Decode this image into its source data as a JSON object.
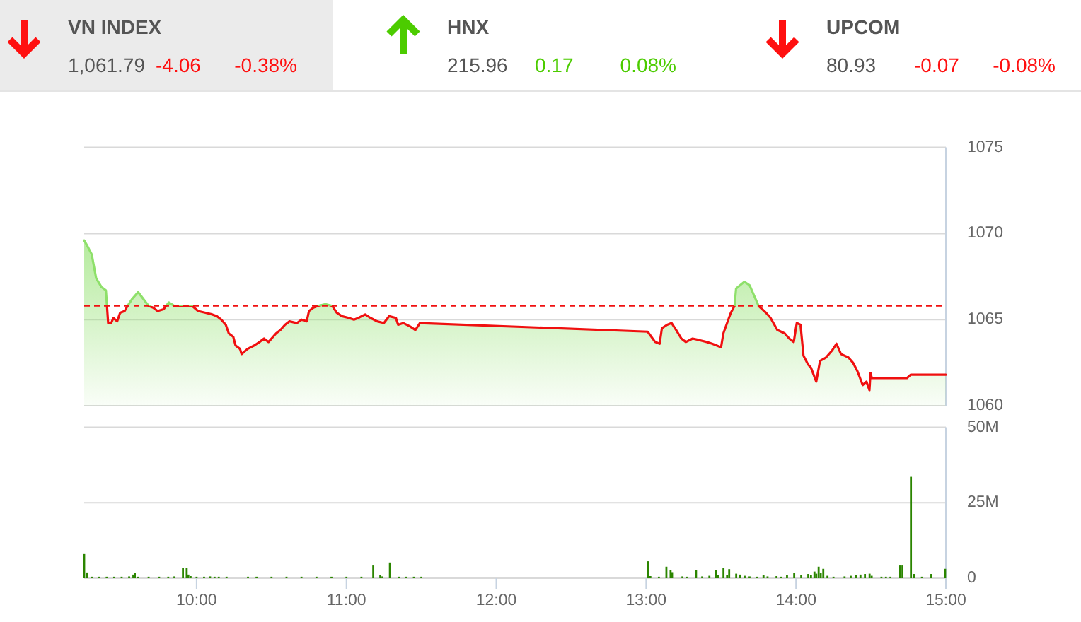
{
  "chart_data": [
    {
      "type": "other",
      "categories": [
        "VN INDEX",
        "HNX",
        "UPCOM"
      ],
      "colors": [
        "#ff1010",
        "#4ccc00",
        "#ff1010"
      ],
      "series": [
        {
          "values": [
            -4.06,
            0.17,
            -0.07
          ],
          "value_labels": [
            "-4.06",
            "0.17",
            "-0.07"
          ]
        }
      ],
      "annotations": [
        "1,061.79",
        "-0.38%",
        "215.96",
        "0.08%",
        "80.93",
        "-0.08%"
      ]
    },
    {
      "type": "area",
      "xlim": [
        9.25,
        15
      ],
      "ylim": [
        1060,
        1075
      ],
      "yticks": [
        1060,
        1065,
        1070,
        1075
      ],
      "tick_labels": "y",
      "grid": "y",
      "x": [
        9.25,
        9.27,
        9.3,
        9.33,
        9.365,
        9.395,
        9.41,
        9.43,
        9.445,
        9.47,
        9.49,
        9.52,
        9.54,
        9.57,
        9.61,
        9.645,
        9.68,
        9.71,
        9.74,
        9.78,
        9.815,
        9.85,
        9.915,
        9.97,
        10.01,
        10.06,
        10.105,
        10.135,
        10.165,
        10.195,
        10.215,
        10.245,
        10.26,
        10.29,
        10.3,
        10.34,
        10.385,
        10.42,
        10.45,
        10.48,
        10.53,
        10.56,
        10.59,
        10.62,
        10.67,
        10.7,
        10.735,
        10.75,
        10.78,
        10.81,
        10.86,
        10.905,
        10.935,
        10.97,
        11.015,
        11.05,
        11.08,
        11.125,
        11.16,
        11.205,
        11.25,
        11.285,
        11.33,
        11.345,
        11.38,
        11.425,
        11.46,
        11.49,
        13.01,
        13.06,
        13.09,
        13.105,
        13.14,
        13.17,
        13.2,
        13.235,
        13.265,
        13.31,
        13.36,
        13.405,
        13.44,
        13.47,
        13.5,
        13.515,
        13.54,
        13.565,
        13.59,
        13.6,
        13.655,
        13.69,
        13.715,
        13.75,
        13.8,
        13.83,
        13.875,
        13.925,
        13.955,
        13.985,
        14.005,
        14.03,
        14.05,
        14.08,
        14.1,
        14.135,
        14.16,
        14.2,
        14.24,
        14.27,
        14.3,
        14.35,
        14.38,
        14.41,
        14.445,
        14.47,
        14.49,
        14.497,
        14.506,
        14.74,
        14.765,
        15
      ],
      "series": [
        {
          "type": "area",
          "color": "#8ee06a",
          "values": [
            1069.6,
            1069.3,
            1068.8,
            1067.4,
            1066.9,
            1066.7,
            1064.8,
            1064.8,
            1065.1,
            1064.9,
            1065.4,
            1065.5,
            1065.8,
            1066.2,
            1066.6,
            1066.2,
            1065.8,
            1065.7,
            1065.5,
            1065.6,
            1066,
            1065.8,
            1065.8,
            1065.8,
            1065.5,
            1065.4,
            1065.3,
            1065.2,
            1065,
            1064.7,
            1064.2,
            1064,
            1063.5,
            1063.3,
            1063,
            1063.3,
            1063.5,
            1063.7,
            1063.9,
            1063.7,
            1064.2,
            1064.4,
            1064.7,
            1064.9,
            1064.8,
            1065,
            1064.9,
            1065.5,
            1065.7,
            1065.8,
            1065.9,
            1065.8,
            1065.4,
            1065.2,
            1065.1,
            1065,
            1065.1,
            1065.3,
            1065.1,
            1064.9,
            1064.8,
            1065.2,
            1065.1,
            1064.7,
            1064.8,
            1064.6,
            1064.4,
            1064.8,
            1064.3,
            1063.7,
            1063.6,
            1064.5,
            1064.7,
            1064.8,
            1064.4,
            1063.9,
            1063.7,
            1063.9,
            1063.8,
            1063.7,
            1063.6,
            1063.5,
            1063.4,
            1064.2,
            1064.8,
            1065.4,
            1065.8,
            1066.8,
            1067.2,
            1067,
            1066.5,
            1065.8,
            1065.4,
            1065.1,
            1064.4,
            1064.2,
            1063.9,
            1063.7,
            1064.8,
            1064.7,
            1062.9,
            1062.4,
            1062.2,
            1061.4,
            1062.6,
            1062.8,
            1063.2,
            1063.6,
            1063,
            1062.8,
            1062.5,
            1062,
            1061.2,
            1061.4,
            1060.9,
            1061.9,
            1061.6,
            1061.6,
            1061.8,
            1061.8
          ]
        }
      ],
      "ref_lines": [
        {
          "axis": "y",
          "value": 1065.8,
          "color": "#f01010",
          "line_style": "dashed"
        }
      ]
    },
    {
      "type": "bar",
      "color": "#2b8500",
      "xlim": [
        9.25,
        15
      ],
      "ylim": [
        0,
        50
      ],
      "yticks": [
        0,
        {
          "value": 25,
          "label": "25M"
        },
        {
          "value": 50,
          "label": "50M"
        }
      ],
      "grid": "y",
      "xticks": [
        {
          "value": 10,
          "label": "10:00"
        },
        {
          "value": 11,
          "label": "11:00"
        },
        {
          "value": 12,
          "label": "12:00"
        },
        {
          "value": 13,
          "label": "13:00"
        },
        {
          "value": 14,
          "label": "14:00"
        },
        {
          "value": 15,
          "label": "15:00"
        }
      ],
      "x": [
        9.25,
        9.267,
        9.3,
        9.35,
        9.4,
        9.45,
        9.5,
        9.55,
        9.578,
        9.588,
        9.61,
        9.68,
        9.75,
        9.811,
        9.852,
        9.909,
        9.934,
        9.945,
        9.96,
        10,
        10.05,
        10.09,
        10.12,
        10.148,
        10.2,
        10.343,
        10.4,
        10.5,
        10.6,
        10.7,
        10.8,
        10.9,
        11,
        11.1,
        11.179,
        11.226,
        11.24,
        11.29,
        11.35,
        11.4,
        11.45,
        11.5,
        13.012,
        13.028,
        13.085,
        13.135,
        13.163,
        13.173,
        13.242,
        13.27,
        13.333,
        13.374,
        13.422,
        13.465,
        13.48,
        13.516,
        13.54,
        13.554,
        13.601,
        13.626,
        13.657,
        13.69,
        13.74,
        13.783,
        13.81,
        13.87,
        13.9,
        13.94,
        13.988,
        14.035,
        14.082,
        14.1,
        14.123,
        14.135,
        14.151,
        14.165,
        14.182,
        14.21,
        14.25,
        14.324,
        14.365,
        14.4,
        14.43,
        14.46,
        14.491,
        14.505,
        14.57,
        14.6,
        14.63,
        14.695,
        14.71,
        14.767,
        14.789,
        14.84,
        14.903,
        14.995
      ],
      "values": [
        8,
        1.9,
        0.5,
        0.5,
        0.5,
        0.5,
        0.5,
        0.6,
        1.2,
        1.7,
        0.5,
        0.5,
        0.5,
        0.5,
        0.6,
        3.3,
        3.3,
        1.2,
        0.7,
        0.5,
        0.5,
        0.6,
        0.5,
        0.5,
        0.5,
        0.5,
        0.5,
        0.5,
        0.5,
        0.5,
        0.5,
        0.5,
        0.5,
        0.5,
        4.2,
        1,
        0.6,
        5.2,
        0.5,
        0.5,
        0.5,
        0.5,
        5.6,
        0.7,
        0.5,
        3.8,
        2.7,
        2,
        0.6,
        0.5,
        2.8,
        0.6,
        0.8,
        2.7,
        1,
        3.3,
        1,
        3,
        1.5,
        1.2,
        0.8,
        0.6,
        0.5,
        1,
        0.6,
        0.7,
        0.5,
        1,
        1.7,
        1,
        1.4,
        1,
        2.2,
        1.5,
        3.8,
        1.8,
        3.1,
        0.8,
        0.5,
        0.6,
        0.8,
        1,
        1.2,
        1.4,
        1.5,
        0.8,
        0.5,
        0.5,
        0.5,
        4.2,
        4.2,
        33.6,
        1.4,
        0.5,
        1.4,
        3.1
      ]
    }
  ]
}
